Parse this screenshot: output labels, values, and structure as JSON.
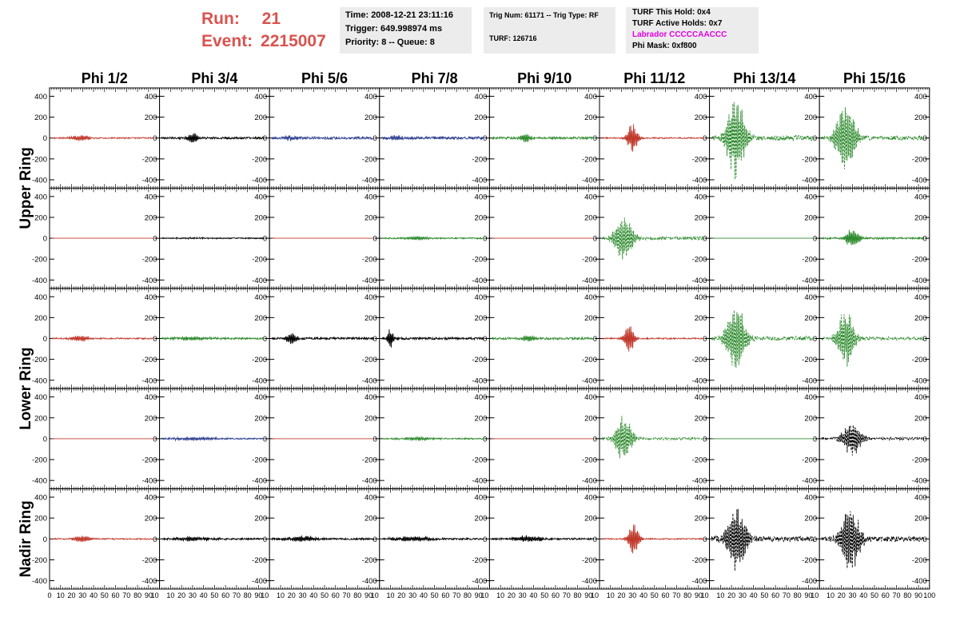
{
  "header": {
    "run_label": "Run:",
    "run_value": "21",
    "event_label": "Event:",
    "event_value": "2215007"
  },
  "info_time": {
    "time": "Time: 2008-12-21 23:11:16",
    "trigger": "Trigger: 649.998974 ms",
    "priority": "Priority: 8 -- Queue: 8"
  },
  "info_trig": {
    "trig": "Trig Num: 61171 -- Trig Type: RF",
    "turf": "TURF: 126716"
  },
  "info_turf": {
    "this_hold": "TURF This Hold: 0x4",
    "active_holds": "TURF Active Holds: 0x7",
    "labrador": "Labrador CCCCCAACCC",
    "phi_mask": "Phi Mask: 0xf800"
  },
  "colors": {
    "red": "#c0392b",
    "green": "#2e8b2e",
    "blue": "#2c3e8f",
    "black": "#000000",
    "run_text": "#d9534f",
    "labrador": "#e000e0"
  },
  "chart_data": {
    "type": "line",
    "column_labels": [
      "Phi 1/2",
      "Phi 3/4",
      "Phi 5/6",
      "Phi 7/8",
      "Phi 9/10",
      "Phi 11/12",
      "Phi 13/14",
      "Phi 15/16"
    ],
    "row_labels": [
      {
        "text": "Upper Ring",
        "rows": [
          0,
          1
        ]
      },
      {
        "text": "Lower Ring",
        "rows": [
          2,
          3
        ]
      },
      {
        "text": "Nadir Ring",
        "rows": [
          4,
          4
        ]
      }
    ],
    "xlim": [
      0,
      100
    ],
    "ylim": [
      -480,
      480
    ],
    "y_ticks": [
      -400,
      -200,
      0,
      200,
      400
    ],
    "x_ticks": [
      0,
      10,
      20,
      30,
      40,
      50,
      60,
      70,
      80,
      90,
      100
    ],
    "grid": false,
    "panels": [
      [
        {
          "color": "red",
          "amp": 30,
          "center": 28,
          "width": 9,
          "noise": 6,
          "style": "solid"
        },
        {
          "color": "black",
          "amp": 55,
          "center": 30,
          "width": 5,
          "noise": 10,
          "style": "solid"
        },
        {
          "color": "blue",
          "amp": 25,
          "center": 20,
          "width": 6,
          "noise": 12,
          "style": "solid"
        },
        {
          "color": "blue",
          "amp": 30,
          "center": 15,
          "width": 6,
          "noise": 12,
          "style": "solid"
        },
        {
          "color": "green",
          "amp": 45,
          "center": 33,
          "width": 5,
          "noise": 10,
          "style": "solid"
        },
        {
          "color": "red",
          "amp": 150,
          "center": 30,
          "width": 5,
          "noise": 6,
          "style": "solid"
        },
        {
          "color": "green",
          "amp": 400,
          "center": 24,
          "width": 9,
          "noise": 25,
          "style": "dashed"
        },
        {
          "color": "green",
          "amp": 370,
          "center": 24,
          "width": 9,
          "noise": 20,
          "style": "dashed"
        }
      ],
      [
        {
          "color": "red",
          "amp": 0,
          "center": 30,
          "width": 5,
          "noise": 0,
          "style": "solid"
        },
        {
          "color": "black",
          "amp": 5,
          "center": 30,
          "width": 30,
          "noise": 5,
          "style": "solid"
        },
        {
          "color": "red",
          "amp": 0,
          "center": 30,
          "width": 5,
          "noise": 0,
          "style": "solid"
        },
        {
          "color": "green",
          "amp": 20,
          "center": 35,
          "width": 10,
          "noise": 6,
          "style": "solid"
        },
        {
          "color": "red",
          "amp": 0,
          "center": 30,
          "width": 5,
          "noise": 0,
          "style": "solid"
        },
        {
          "color": "green",
          "amp": 230,
          "center": 22,
          "width": 9,
          "noise": 15,
          "style": "dashed"
        },
        {
          "color": "green",
          "amp": 0,
          "center": 30,
          "width": 5,
          "noise": 0,
          "style": "solid"
        },
        {
          "color": "green",
          "amp": 90,
          "center": 30,
          "width": 7,
          "noise": 8,
          "style": "solid"
        }
      ],
      [
        {
          "color": "red",
          "amp": 30,
          "center": 28,
          "width": 9,
          "noise": 6,
          "style": "solid"
        },
        {
          "color": "green",
          "amp": 15,
          "center": 30,
          "width": 20,
          "noise": 8,
          "style": "solid"
        },
        {
          "color": "black",
          "amp": 60,
          "center": 20,
          "width": 5,
          "noise": 10,
          "style": "solid"
        },
        {
          "color": "black",
          "amp": 100,
          "center": 10,
          "width": 3,
          "noise": 10,
          "style": "solid"
        },
        {
          "color": "green",
          "amp": 40,
          "center": 36,
          "width": 6,
          "noise": 10,
          "style": "solid"
        },
        {
          "color": "red",
          "amp": 160,
          "center": 27,
          "width": 5,
          "noise": 6,
          "style": "solid"
        },
        {
          "color": "green",
          "amp": 370,
          "center": 24,
          "width": 9,
          "noise": 20,
          "style": "dashed"
        },
        {
          "color": "green",
          "amp": 300,
          "center": 24,
          "width": 8,
          "noise": 15,
          "style": "dashed"
        }
      ],
      [
        {
          "color": "red",
          "amp": 0,
          "center": 30,
          "width": 5,
          "noise": 0,
          "style": "solid"
        },
        {
          "color": "blue",
          "amp": 15,
          "center": 30,
          "width": 25,
          "noise": 6,
          "style": "solid"
        },
        {
          "color": "red",
          "amp": 0,
          "center": 30,
          "width": 5,
          "noise": 0,
          "style": "solid"
        },
        {
          "color": "green",
          "amp": 20,
          "center": 35,
          "width": 15,
          "noise": 6,
          "style": "solid"
        },
        {
          "color": "red",
          "amp": 0,
          "center": 30,
          "width": 5,
          "noise": 0,
          "style": "solid"
        },
        {
          "color": "green",
          "amp": 230,
          "center": 22,
          "width": 8,
          "noise": 12,
          "style": "dashed"
        },
        {
          "color": "green",
          "amp": 0,
          "center": 30,
          "width": 5,
          "noise": 0,
          "style": "solid"
        },
        {
          "color": "black",
          "amp": 180,
          "center": 30,
          "width": 9,
          "noise": 12,
          "style": "dashed"
        }
      ],
      [
        {
          "color": "red",
          "amp": 35,
          "center": 30,
          "width": 9,
          "noise": 6,
          "style": "solid"
        },
        {
          "color": "black",
          "amp": 20,
          "center": 30,
          "width": 20,
          "noise": 8,
          "style": "solid"
        },
        {
          "color": "black",
          "amp": 30,
          "center": 30,
          "width": 15,
          "noise": 8,
          "style": "solid"
        },
        {
          "color": "black",
          "amp": 25,
          "center": 30,
          "width": 20,
          "noise": 8,
          "style": "solid"
        },
        {
          "color": "black",
          "amp": 30,
          "center": 35,
          "width": 15,
          "noise": 8,
          "style": "solid"
        },
        {
          "color": "red",
          "amp": 170,
          "center": 31,
          "width": 5,
          "noise": 6,
          "style": "solid"
        },
        {
          "color": "black",
          "amp": 330,
          "center": 25,
          "width": 9,
          "noise": 25,
          "style": "dashed"
        },
        {
          "color": "black",
          "amp": 360,
          "center": 28,
          "width": 9,
          "noise": 25,
          "style": "dashed"
        }
      ]
    ]
  }
}
